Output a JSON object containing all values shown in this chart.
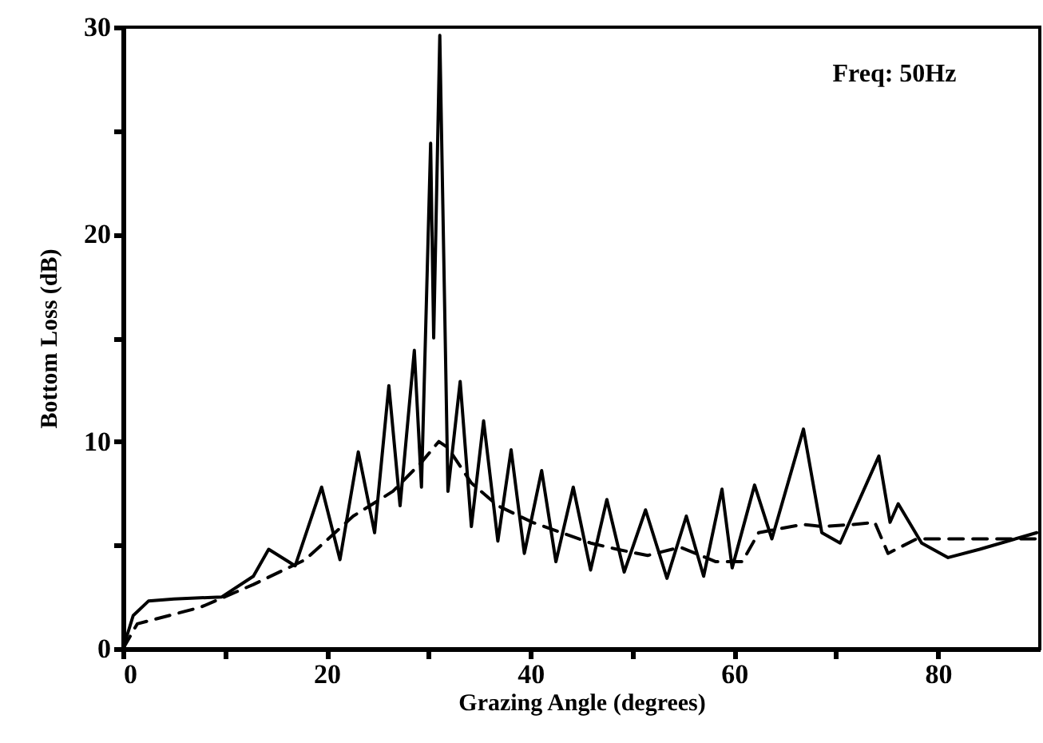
{
  "chart_data": {
    "type": "line",
    "xlabel": "Grazing Angle (degrees)",
    "ylabel": "Bottom Loss (dB)",
    "annotations": [
      "Freq:   50Hz"
    ],
    "xlim": [
      0,
      90
    ],
    "ylim": [
      0,
      30
    ],
    "xticks": [
      0,
      {
        "value": 10,
        "label": null
      },
      20,
      {
        "value": 30,
        "label": null
      },
      40,
      {
        "value": 50,
        "label": null
      },
      60,
      {
        "value": 70,
        "label": null
      },
      80
    ],
    "yticks": [
      0,
      {
        "value": 5,
        "label": null
      },
      10,
      {
        "value": 15,
        "label": null
      },
      20,
      {
        "value": 25,
        "label": null
      },
      30
    ],
    "grid": false,
    "series": [
      {
        "color": "#000000",
        "line_style": "solid",
        "x": [
          0,
          1,
          2.5,
          5,
          9.7,
          12.8,
          14.3,
          16.9,
          19.5,
          21.3,
          23.1,
          24.7,
          26.1,
          27.2,
          28.6,
          29.3,
          30.2,
          30.5,
          31.1,
          31.9,
          33.1,
          34.2,
          35.4,
          36.8,
          38.1,
          39.4,
          41.1,
          42.5,
          44.2,
          45.9,
          47.5,
          49.2,
          51.3,
          53.4,
          55.3,
          57,
          58.8,
          59.8,
          62,
          63.7,
          66.8,
          68.6,
          70.4,
          74.2,
          75.3,
          76.1,
          78.4,
          81,
          84.1,
          89.7
        ],
        "values": [
          0,
          1.6,
          2.3,
          2.4,
          2.5,
          3.5,
          4.8,
          4.0,
          7.8,
          4.3,
          9.5,
          5.6,
          12.7,
          6.9,
          14.4,
          7.8,
          24.4,
          15,
          29.6,
          7.6,
          12.9,
          5.9,
          11,
          5.2,
          9.6,
          4.6,
          8.6,
          4.2,
          7.8,
          3.8,
          7.2,
          3.7,
          6.7,
          3.4,
          6.4,
          3.5,
          7.7,
          3.9,
          7.9,
          5.3,
          10.6,
          5.6,
          5.1,
          9.3,
          6.1,
          7,
          5.1,
          4.4,
          4.8,
          5.6
        ]
      },
      {
        "color": "#000000",
        "line_style": "dashed",
        "x": [
          0,
          1.4,
          7.6,
          12.8,
          17.9,
          22.6,
          26.5,
          29.3,
          31,
          31.9,
          34.2,
          36.8,
          40.2,
          45.9,
          48.5,
          51.5,
          54.7,
          58.2,
          60.8,
          62.4,
          66.7,
          68.6,
          71.7,
          73.8,
          75.1,
          77.9,
          84.1,
          89.7
        ],
        "values": [
          0,
          1.2,
          2,
          3.1,
          4.3,
          6.4,
          7.6,
          9.0,
          10,
          9.7,
          8.0,
          6.9,
          6.1,
          5.1,
          4.8,
          4.5,
          4.9,
          4.2,
          4.2,
          5.6,
          6,
          5.9,
          6,
          6.1,
          4.6,
          5.3,
          5.3,
          5.3
        ]
      }
    ]
  }
}
